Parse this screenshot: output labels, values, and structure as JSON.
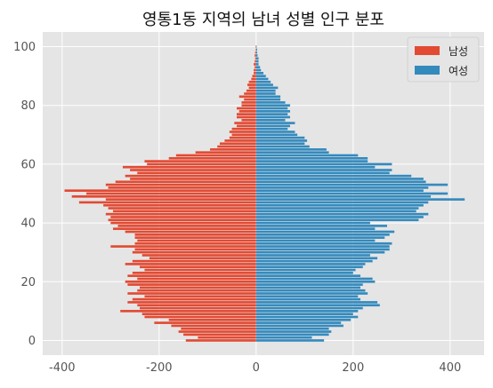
{
  "chart_data": {
    "type": "bar",
    "orientation": "horizontal",
    "title": "영통1동 지역의 남녀 성별 인구 분포",
    "xlabel": "",
    "ylabel": "",
    "xlim": [
      -440,
      470
    ],
    "ylim": [
      -5,
      105
    ],
    "xticks": [
      -400,
      -200,
      0,
      200,
      400
    ],
    "yticks": [
      0,
      20,
      40,
      60,
      80,
      100
    ],
    "grid": true,
    "legend_position": "top-right",
    "colors": {
      "male": "#E24A33",
      "female": "#348ABD",
      "background": "#E5E5E5",
      "grid": "#FFFFFF"
    },
    "ages": [
      0,
      1,
      2,
      3,
      4,
      5,
      6,
      7,
      8,
      9,
      10,
      11,
      12,
      13,
      14,
      15,
      16,
      17,
      18,
      19,
      20,
      21,
      22,
      23,
      24,
      25,
      26,
      27,
      28,
      29,
      30,
      31,
      32,
      33,
      34,
      35,
      36,
      37,
      38,
      39,
      40,
      41,
      42,
      43,
      44,
      45,
      46,
      47,
      48,
      49,
      50,
      51,
      52,
      53,
      54,
      55,
      56,
      57,
      58,
      59,
      60,
      61,
      62,
      63,
      64,
      65,
      66,
      67,
      68,
      69,
      70,
      71,
      72,
      73,
      74,
      75,
      76,
      77,
      78,
      79,
      80,
      81,
      82,
      83,
      84,
      85,
      86,
      87,
      88,
      89,
      90,
      91,
      92,
      93,
      94,
      95,
      96,
      97,
      98,
      99,
      100
    ],
    "series": [
      {
        "name": "남성",
        "values": [
          -145,
          -120,
          -150,
          -160,
          -155,
          -175,
          -210,
          -180,
          -230,
          -235,
          -280,
          -240,
          -245,
          -265,
          -255,
          -230,
          -265,
          -245,
          -240,
          -265,
          -270,
          -245,
          -265,
          -255,
          -230,
          -240,
          -270,
          -255,
          -220,
          -235,
          -255,
          -250,
          -300,
          -250,
          -245,
          -250,
          -250,
          -270,
          -295,
          -285,
          -300,
          -305,
          -300,
          -310,
          -295,
          -305,
          -315,
          -365,
          -310,
          -380,
          -350,
          -395,
          -305,
          -310,
          -290,
          -260,
          -270,
          -245,
          -260,
          -275,
          -225,
          -230,
          -180,
          -165,
          -125,
          -95,
          -80,
          -75,
          -65,
          -55,
          -50,
          -55,
          -50,
          -40,
          -45,
          -30,
          -40,
          -40,
          -35,
          -40,
          -30,
          -30,
          -25,
          -35,
          -25,
          -20,
          -15,
          -18,
          -15,
          -10,
          -8,
          -5,
          -5,
          -3,
          -5,
          -3,
          -2,
          -3,
          -2,
          -1,
          -1
        ]
      },
      {
        "name": "여성",
        "values": [
          140,
          115,
          150,
          155,
          150,
          180,
          175,
          195,
          210,
          200,
          210,
          220,
          255,
          250,
          215,
          210,
          230,
          225,
          215,
          220,
          245,
          240,
          215,
          200,
          205,
          220,
          225,
          240,
          250,
          235,
          265,
          275,
          275,
          280,
          245,
          265,
          275,
          285,
          245,
          270,
          235,
          335,
          345,
          355,
          330,
          335,
          345,
          355,
          430,
          360,
          395,
          345,
          355,
          395,
          350,
          345,
          320,
          275,
          280,
          245,
          280,
          230,
          230,
          210,
          150,
          145,
          110,
          100,
          105,
          100,
          85,
          80,
          65,
          70,
          80,
          60,
          70,
          65,
          70,
          65,
          70,
          60,
          50,
          50,
          40,
          40,
          45,
          35,
          30,
          25,
          20,
          15,
          10,
          8,
          5,
          5,
          5,
          3,
          2,
          2,
          1
        ]
      }
    ]
  }
}
